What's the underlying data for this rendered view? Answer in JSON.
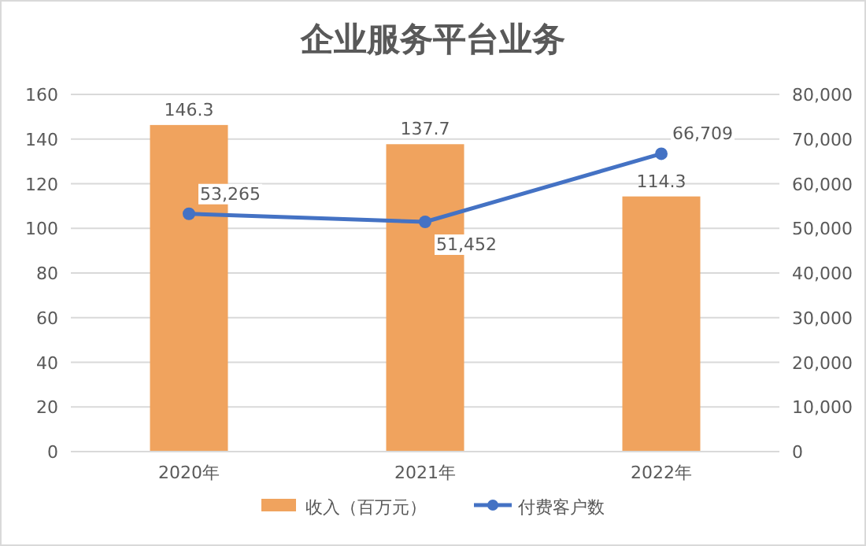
{
  "chart_data": {
    "type": "bar",
    "title": "企业服务平台业务",
    "categories": [
      "2020年",
      "2021年",
      "2022年"
    ],
    "series": [
      {
        "name": "收入（百万元）",
        "color": "#f0a35e",
        "values": [
          146.3,
          137.7,
          114.3
        ]
      },
      {
        "name": "付费客户数",
        "type": "line",
        "axis": "y2",
        "color": "#4472c4",
        "marker": "circle",
        "values": [
          53265,
          51452,
          66709
        ],
        "value_labels": [
          "53,265",
          "51,452",
          "66,709"
        ]
      }
    ],
    "ylim": [
      0,
      160
    ],
    "yticks": [
      0,
      20,
      40,
      60,
      80,
      100,
      120,
      140,
      160
    ],
    "y2lim": [
      0,
      80000
    ],
    "y2ticks": [
      0,
      {
        "value": 10000,
        "label": "10,000"
      },
      {
        "value": 20000,
        "label": "20,000"
      },
      {
        "value": 30000,
        "label": "30,000"
      },
      {
        "value": 40000,
        "label": "40,000"
      },
      {
        "value": 50000,
        "label": "50,000"
      },
      {
        "value": 60000,
        "label": "60,000"
      },
      {
        "value": 70000,
        "label": "70,000"
      },
      {
        "value": 80000,
        "label": "80,000"
      }
    ],
    "grid": "y",
    "legend": "bottom",
    "data_labels": true
  }
}
